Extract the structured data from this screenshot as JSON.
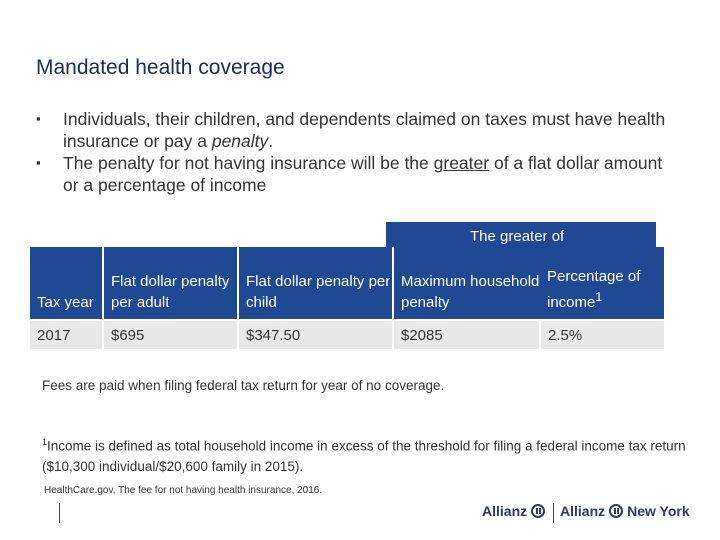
{
  "slide": {
    "title": "Mandated health coverage",
    "bullets": [
      {
        "before": "Individuals, their children, and dependents claimed on taxes must have health insurance or pay a ",
        "emph": "penalty",
        "after": "."
      },
      {
        "before": "The penalty for not having insurance will be the ",
        "emph": "greater",
        "after": " of a flat dollar amount or a percentage of income"
      }
    ]
  },
  "table": {
    "group_header": "The greater of",
    "headers": {
      "tax_year": "Tax year",
      "flat_adult": "Flat dollar penalty per adult",
      "flat_child": "Flat dollar penalty per child",
      "max_household": "Maximum household penalty",
      "percentage": "Percentage of income",
      "percentage_sup": "1"
    },
    "row": {
      "tax_year": "2017",
      "flat_adult": "$695",
      "flat_child": "$347.50",
      "max_household": "$2085",
      "percentage": "2.5%"
    }
  },
  "notes": {
    "fees": "Fees are paid when filing federal tax return for year of no coverage.",
    "footnote_marker": "1",
    "footnote": "Income is defined as total household income in excess of the threshold for filing a federal income tax return ($10,300 individual/$20,600 family in 2015).",
    "source": "HealthCare.gov, The fee for not having health insurance, 2016."
  },
  "footer": {
    "logo1": "Allianz",
    "logo2": "Allianz",
    "logo2_suffix": "New York",
    "brand_color": "#1f4a93"
  }
}
